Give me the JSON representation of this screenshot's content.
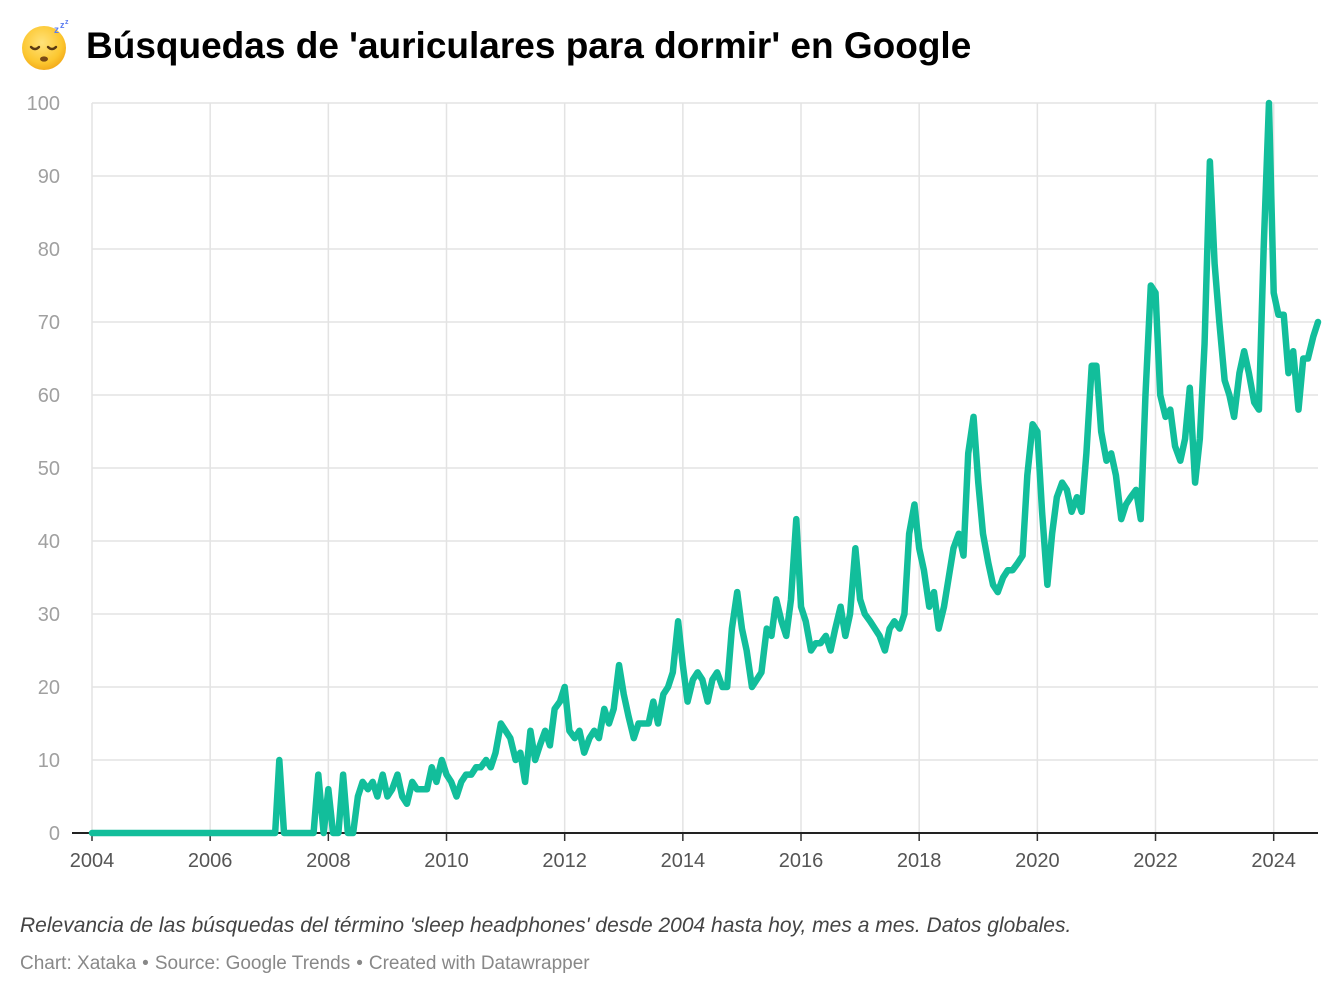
{
  "header": {
    "emoji_icon": "sleeping-face-icon",
    "title": "Búsquedas de 'auriculares para dormir' en Google"
  },
  "caption": "Relevancia de las búsquedas del término 'sleep headphones' desde 2004 hasta hoy, mes a mes. Datos globales.",
  "footer": {
    "chart_by": "Chart: Xataka",
    "source": "Source: Google Trends",
    "created_with": "Created with Datawrapper",
    "separator": "•"
  },
  "chart_data": {
    "type": "line",
    "title": "Búsquedas de 'auriculares para dormir' en Google",
    "xlabel": "",
    "ylabel": "",
    "xlim": [
      2004.0,
      2024.75
    ],
    "ylim": [
      0,
      100
    ],
    "x_ticks": [
      2004,
      2006,
      2008,
      2010,
      2012,
      2014,
      2016,
      2018,
      2020,
      2022,
      2024
    ],
    "y_ticks": [
      0,
      10,
      20,
      30,
      40,
      50,
      60,
      70,
      80,
      90,
      100
    ],
    "grid": true,
    "line_color": "#12be9b",
    "grid_color": "#e3e3e3",
    "points": [
      [
        2004.0,
        0
      ],
      [
        2007.1,
        0
      ],
      [
        2007.17,
        10
      ],
      [
        2007.25,
        0
      ],
      [
        2007.75,
        0
      ],
      [
        2007.83,
        8
      ],
      [
        2007.92,
        0
      ],
      [
        2008.0,
        6
      ],
      [
        2008.08,
        0
      ],
      [
        2008.17,
        0
      ],
      [
        2008.25,
        8
      ],
      [
        2008.33,
        0
      ],
      [
        2008.42,
        0
      ],
      [
        2008.5,
        5
      ],
      [
        2008.58,
        7
      ],
      [
        2008.67,
        6
      ],
      [
        2008.75,
        7
      ],
      [
        2008.83,
        5
      ],
      [
        2008.92,
        8
      ],
      [
        2009.0,
        5
      ],
      [
        2009.08,
        6
      ],
      [
        2009.17,
        8
      ],
      [
        2009.25,
        5
      ],
      [
        2009.33,
        4
      ],
      [
        2009.42,
        7
      ],
      [
        2009.5,
        6
      ],
      [
        2009.58,
        6
      ],
      [
        2009.67,
        6
      ],
      [
        2009.75,
        9
      ],
      [
        2009.83,
        7
      ],
      [
        2009.92,
        10
      ],
      [
        2010.0,
        8
      ],
      [
        2010.08,
        7
      ],
      [
        2010.17,
        5
      ],
      [
        2010.25,
        7
      ],
      [
        2010.33,
        8
      ],
      [
        2010.42,
        8
      ],
      [
        2010.5,
        9
      ],
      [
        2010.58,
        9
      ],
      [
        2010.67,
        10
      ],
      [
        2010.75,
        9
      ],
      [
        2010.83,
        11
      ],
      [
        2010.92,
        15
      ],
      [
        2011.0,
        14
      ],
      [
        2011.08,
        13
      ],
      [
        2011.17,
        10
      ],
      [
        2011.25,
        11
      ],
      [
        2011.33,
        7
      ],
      [
        2011.42,
        14
      ],
      [
        2011.5,
        10
      ],
      [
        2011.58,
        12
      ],
      [
        2011.67,
        14
      ],
      [
        2011.75,
        12
      ],
      [
        2011.83,
        17
      ],
      [
        2011.92,
        18
      ],
      [
        2012.0,
        20
      ],
      [
        2012.08,
        14
      ],
      [
        2012.17,
        13
      ],
      [
        2012.25,
        14
      ],
      [
        2012.33,
        11
      ],
      [
        2012.42,
        13
      ],
      [
        2012.5,
        14
      ],
      [
        2012.58,
        13
      ],
      [
        2012.67,
        17
      ],
      [
        2012.75,
        15
      ],
      [
        2012.83,
        17
      ],
      [
        2012.92,
        23
      ],
      [
        2013.0,
        19
      ],
      [
        2013.08,
        16
      ],
      [
        2013.17,
        13
      ],
      [
        2013.25,
        15
      ],
      [
        2013.33,
        15
      ],
      [
        2013.42,
        15
      ],
      [
        2013.5,
        18
      ],
      [
        2013.58,
        15
      ],
      [
        2013.67,
        19
      ],
      [
        2013.75,
        20
      ],
      [
        2013.83,
        22
      ],
      [
        2013.92,
        29
      ],
      [
        2014.0,
        23
      ],
      [
        2014.08,
        18
      ],
      [
        2014.17,
        21
      ],
      [
        2014.25,
        22
      ],
      [
        2014.33,
        21
      ],
      [
        2014.42,
        18
      ],
      [
        2014.5,
        21
      ],
      [
        2014.58,
        22
      ],
      [
        2014.67,
        20
      ],
      [
        2014.75,
        20
      ],
      [
        2014.83,
        28
      ],
      [
        2014.92,
        33
      ],
      [
        2015.0,
        28
      ],
      [
        2015.08,
        25
      ],
      [
        2015.17,
        20
      ],
      [
        2015.25,
        21
      ],
      [
        2015.33,
        22
      ],
      [
        2015.42,
        28
      ],
      [
        2015.5,
        27
      ],
      [
        2015.58,
        32
      ],
      [
        2015.67,
        29
      ],
      [
        2015.75,
        27
      ],
      [
        2015.83,
        32
      ],
      [
        2015.92,
        43
      ],
      [
        2016.0,
        31
      ],
      [
        2016.08,
        29
      ],
      [
        2016.17,
        25
      ],
      [
        2016.25,
        26
      ],
      [
        2016.33,
        26
      ],
      [
        2016.42,
        27
      ],
      [
        2016.5,
        25
      ],
      [
        2016.58,
        28
      ],
      [
        2016.67,
        31
      ],
      [
        2016.75,
        27
      ],
      [
        2016.83,
        30
      ],
      [
        2016.92,
        39
      ],
      [
        2017.0,
        32
      ],
      [
        2017.08,
        30
      ],
      [
        2017.17,
        29
      ],
      [
        2017.25,
        28
      ],
      [
        2017.33,
        27
      ],
      [
        2017.42,
        25
      ],
      [
        2017.5,
        28
      ],
      [
        2017.58,
        29
      ],
      [
        2017.67,
        28
      ],
      [
        2017.75,
        30
      ],
      [
        2017.83,
        41
      ],
      [
        2017.92,
        45
      ],
      [
        2018.0,
        39
      ],
      [
        2018.08,
        36
      ],
      [
        2018.17,
        31
      ],
      [
        2018.25,
        33
      ],
      [
        2018.33,
        28
      ],
      [
        2018.42,
        31
      ],
      [
        2018.5,
        35
      ],
      [
        2018.58,
        39
      ],
      [
        2018.67,
        41
      ],
      [
        2018.75,
        38
      ],
      [
        2018.83,
        52
      ],
      [
        2018.92,
        57
      ],
      [
        2019.0,
        48
      ],
      [
        2019.08,
        41
      ],
      [
        2019.17,
        37
      ],
      [
        2019.25,
        34
      ],
      [
        2019.33,
        33
      ],
      [
        2019.42,
        35
      ],
      [
        2019.5,
        36
      ],
      [
        2019.58,
        36
      ],
      [
        2019.67,
        37
      ],
      [
        2019.75,
        38
      ],
      [
        2019.83,
        49
      ],
      [
        2019.92,
        56
      ],
      [
        2020.0,
        55
      ],
      [
        2020.08,
        44
      ],
      [
        2020.17,
        34
      ],
      [
        2020.25,
        41
      ],
      [
        2020.33,
        46
      ],
      [
        2020.42,
        48
      ],
      [
        2020.5,
        47
      ],
      [
        2020.58,
        44
      ],
      [
        2020.67,
        46
      ],
      [
        2020.75,
        44
      ],
      [
        2020.83,
        52
      ],
      [
        2020.92,
        64
      ],
      [
        2021.0,
        64
      ],
      [
        2021.08,
        55
      ],
      [
        2021.17,
        51
      ],
      [
        2021.25,
        52
      ],
      [
        2021.33,
        49
      ],
      [
        2021.42,
        43
      ],
      [
        2021.5,
        45
      ],
      [
        2021.58,
        46
      ],
      [
        2021.67,
        47
      ],
      [
        2021.75,
        43
      ],
      [
        2021.83,
        60
      ],
      [
        2021.92,
        75
      ],
      [
        2022.0,
        74
      ],
      [
        2022.08,
        60
      ],
      [
        2022.17,
        57
      ],
      [
        2022.25,
        58
      ],
      [
        2022.33,
        53
      ],
      [
        2022.42,
        51
      ],
      [
        2022.5,
        54
      ],
      [
        2022.58,
        61
      ],
      [
        2022.67,
        48
      ],
      [
        2022.75,
        54
      ],
      [
        2022.83,
        67
      ],
      [
        2022.92,
        92
      ],
      [
        2023.0,
        78
      ],
      [
        2023.08,
        70
      ],
      [
        2023.17,
        62
      ],
      [
        2023.25,
        60
      ],
      [
        2023.33,
        57
      ],
      [
        2023.42,
        63
      ],
      [
        2023.5,
        66
      ],
      [
        2023.58,
        63
      ],
      [
        2023.67,
        59
      ],
      [
        2023.75,
        58
      ],
      [
        2023.83,
        80
      ],
      [
        2023.92,
        100
      ],
      [
        2024.0,
        74
      ],
      [
        2024.08,
        71
      ],
      [
        2024.17,
        71
      ],
      [
        2024.25,
        63
      ],
      [
        2024.33,
        66
      ],
      [
        2024.42,
        58
      ],
      [
        2024.5,
        65
      ],
      [
        2024.58,
        65
      ],
      [
        2024.67,
        68
      ],
      [
        2024.75,
        70
      ]
    ]
  }
}
